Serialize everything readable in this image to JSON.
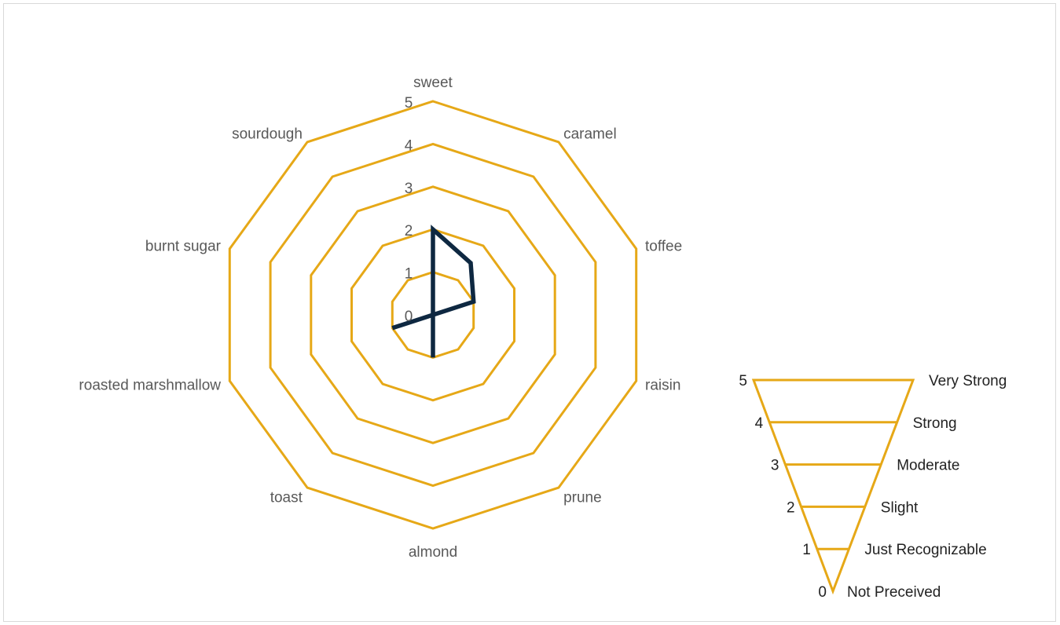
{
  "chart_data": [
    {
      "type": "radar",
      "categories": [
        "sweet",
        "caramel",
        "toffee",
        "raisin",
        "prune",
        "almond",
        "toast",
        "roasted marshmallow",
        "burnt sugar",
        "sourdough"
      ],
      "series": [
        {
          "values": [
            2,
            1.5,
            1,
            0,
            0,
            1,
            0,
            1,
            0,
            0
          ]
        }
      ],
      "rlim": [
        0,
        5
      ],
      "ticks": [
        "0",
        "1",
        "2",
        "3",
        "4",
        "5"
      ],
      "grid_color": "#E6A817",
      "series_color": "#0E2841",
      "legend": "none"
    },
    {
      "type": "funnel",
      "levels": [
        {
          "value": "5",
          "label": "Very Strong"
        },
        {
          "value": "4",
          "label": "Strong"
        },
        {
          "value": "3",
          "label": "Moderate"
        },
        {
          "value": "2",
          "label": "Slight"
        },
        {
          "value": "1",
          "label": "Just Recognizable"
        },
        {
          "value": "0",
          "label": "Not Preceived"
        }
      ],
      "color": "#E6A817"
    }
  ]
}
